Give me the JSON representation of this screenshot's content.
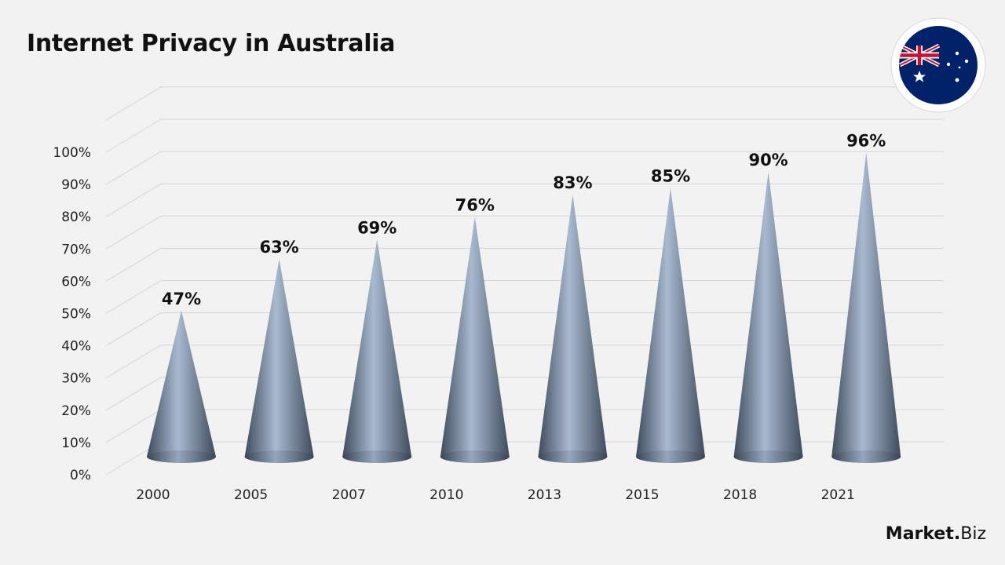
{
  "colors": {
    "background": "#f2f2f2",
    "cone_dark": "#3f4b5c",
    "cone_mid": "#7a8da3",
    "cone_light": "#a9bad0",
    "flag_blue": "#012169",
    "flag_red": "#c8102e"
  },
  "brand": {
    "main": "Market",
    "dot": ".",
    "sub": "Biz"
  },
  "chart_data": {
    "type": "bar",
    "bar_shape": "cone",
    "title": "Internet Privacy in Australia",
    "xlabel": "",
    "ylabel": "",
    "categories": [
      "2000",
      "2005",
      "2007",
      "2010",
      "2013",
      "2015",
      "2018",
      "2021"
    ],
    "values": [
      47,
      63,
      69,
      76,
      83,
      85,
      90,
      96
    ],
    "value_labels": [
      "47%",
      "63%",
      "69%",
      "76%",
      "83%",
      "85%",
      "90%",
      "96%"
    ],
    "ylim": [
      0,
      100
    ],
    "y_ticks": [
      "0%",
      "10%",
      "20%",
      "30%",
      "40%",
      "50%",
      "60%",
      "70%",
      "80%",
      "90%",
      "100%"
    ],
    "grid": true
  }
}
